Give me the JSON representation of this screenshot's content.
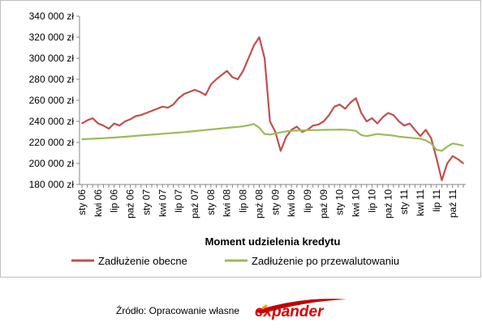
{
  "chart_data": {
    "type": "line",
    "xlabel": "Moment udzielenia kredytu",
    "ylabel": "",
    "ylim": [
      180000,
      340000
    ],
    "yticks": [
      180000,
      200000,
      220000,
      240000,
      260000,
      280000,
      300000,
      320000,
      340000
    ],
    "ytick_labels": [
      "180 000 zł",
      "200 000 zł",
      "220 000 zł",
      "240 000 zł",
      "260 000 zł",
      "280 000 zł",
      "300 000 zł",
      "320 000 zł",
      "340 000 zł"
    ],
    "x_categories": [
      "sty 06",
      "kwi 06",
      "lip 06",
      "paź 06",
      "sty 07",
      "kwi 07",
      "lip 07",
      "paź 07",
      "sty 08",
      "kwi 08",
      "lip 08",
      "paź 08",
      "sty 09",
      "kwi 09",
      "lip 09",
      "paź 09",
      "sty 10",
      "kwi 10",
      "lip 10",
      "paź 10",
      "sty 11",
      "kwi 11",
      "lip 11",
      "paź 11"
    ],
    "x_months": [
      "2006-01",
      "2006-02",
      "2006-03",
      "2006-04",
      "2006-05",
      "2006-06",
      "2006-07",
      "2006-08",
      "2006-09",
      "2006-10",
      "2006-11",
      "2006-12",
      "2007-01",
      "2007-02",
      "2007-03",
      "2007-04",
      "2007-05",
      "2007-06",
      "2007-07",
      "2007-08",
      "2007-09",
      "2007-10",
      "2007-11",
      "2007-12",
      "2008-01",
      "2008-02",
      "2008-03",
      "2008-04",
      "2008-05",
      "2008-06",
      "2008-07",
      "2008-08",
      "2008-09",
      "2008-10",
      "2008-11",
      "2008-12",
      "2009-01",
      "2009-02",
      "2009-03",
      "2009-04",
      "2009-05",
      "2009-06",
      "2009-07",
      "2009-08",
      "2009-09",
      "2009-10",
      "2009-11",
      "2009-12",
      "2010-01",
      "2010-02",
      "2010-03",
      "2010-04",
      "2010-05",
      "2010-06",
      "2010-07",
      "2010-08",
      "2010-09",
      "2010-10",
      "2010-11",
      "2010-12",
      "2011-01",
      "2011-02",
      "2011-03",
      "2011-04",
      "2011-05",
      "2011-06",
      "2011-07",
      "2011-08",
      "2011-09",
      "2011-10",
      "2011-11",
      "2011-12"
    ],
    "series": [
      {
        "name": "Zadłużenie obecne",
        "color": "#c0504d",
        "values": [
          238000,
          241000,
          243000,
          238000,
          236000,
          233000,
          238000,
          236000,
          240000,
          242000,
          245000,
          246000,
          248000,
          250000,
          252000,
          254000,
          253000,
          256000,
          262000,
          266000,
          268000,
          270000,
          268000,
          265000,
          275000,
          280000,
          284000,
          288000,
          282000,
          280000,
          288000,
          300000,
          312000,
          320000,
          300000,
          240000,
          230000,
          212000,
          225000,
          232000,
          235000,
          230000,
          232000,
          236000,
          237000,
          240000,
          246000,
          254000,
          256000,
          252000,
          258000,
          262000,
          248000,
          240000,
          243000,
          238000,
          244000,
          248000,
          246000,
          240000,
          236000,
          238000,
          232000,
          226000,
          232000,
          224000,
          205000,
          184000,
          200000,
          207000,
          204000,
          200000
        ]
      },
      {
        "name": "Zadłużenie po przewalutowaniu",
        "color": "#9bbb59",
        "values": [
          223000,
          223200,
          223500,
          223800,
          224000,
          224300,
          224600,
          225000,
          225400,
          225800,
          226200,
          226600,
          227000,
          227400,
          227800,
          228200,
          228600,
          229000,
          229400,
          229800,
          230300,
          230800,
          231300,
          231800,
          232300,
          232800,
          233300,
          233800,
          234300,
          234800,
          235300,
          236300,
          237500,
          234000,
          228000,
          227500,
          228500,
          229500,
          230500,
          231000,
          231300,
          231500,
          231600,
          231700,
          231800,
          231900,
          232000,
          232100,
          232200,
          232000,
          231800,
          231000,
          227000,
          226000,
          227000,
          228000,
          227500,
          227000,
          226500,
          225500,
          225000,
          224500,
          224000,
          223500,
          222000,
          219000,
          213000,
          212000,
          216000,
          219000,
          218000,
          217000
        ]
      }
    ],
    "legend_position": "bottom",
    "grid": true
  },
  "footer": {
    "source_text": "Źródło: Opracowanie własne",
    "logo_text": "expander"
  }
}
